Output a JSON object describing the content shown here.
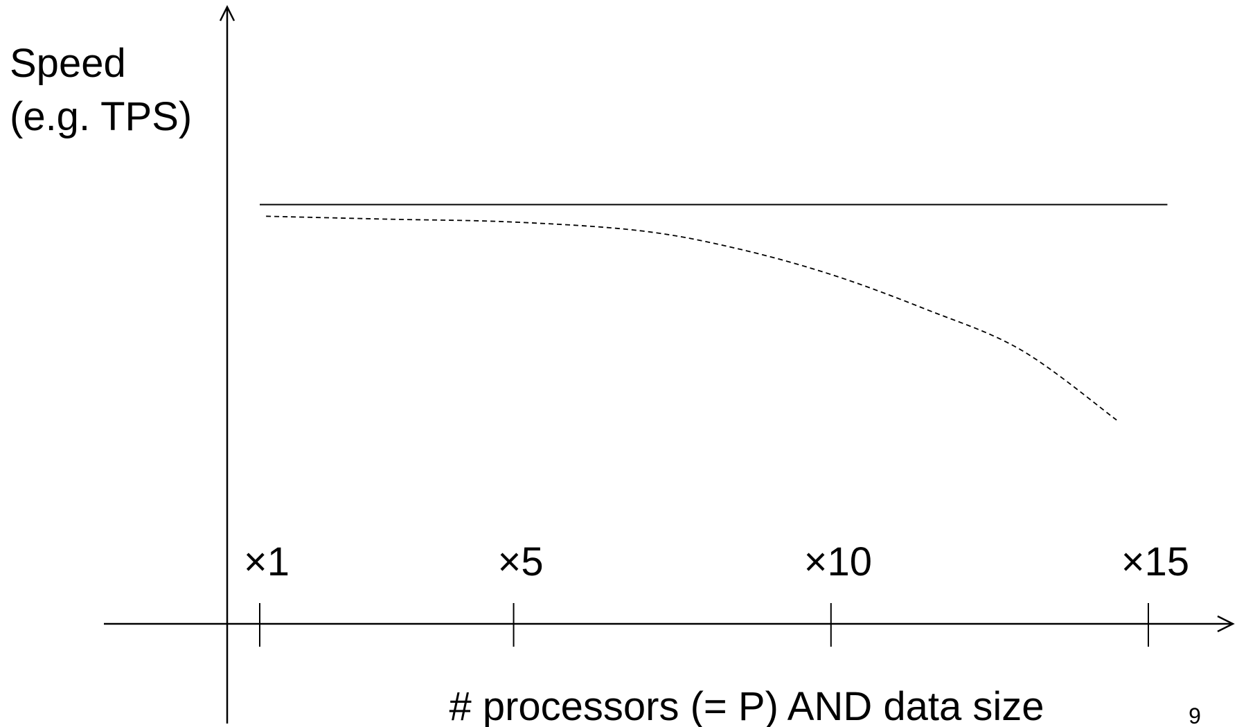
{
  "slide": {
    "page_number": "9"
  },
  "chart_data": {
    "type": "line",
    "title": "",
    "ylabel_lines": [
      "Speed",
      "(e.g. TPS)"
    ],
    "xlabel": "# processors (= P) AND data size",
    "ticks": [
      {
        "x": 1,
        "label": "×1"
      },
      {
        "x": 5,
        "label": "×5"
      },
      {
        "x": 10,
        "label": "×10"
      },
      {
        "x": 15,
        "label": "×15"
      }
    ],
    "xlim": [
      -2,
      16.5
    ],
    "ylim": [
      0,
      1
    ],
    "y_axis_ticks": false,
    "grid": false,
    "legend": "none",
    "series": [
      {
        "style": "solid",
        "color": "#000000",
        "points": [
          [
            1,
            0.72
          ],
          [
            15.3,
            0.72
          ]
        ]
      },
      {
        "style": "dashed",
        "color": "#000000",
        "points": [
          [
            1.1,
            0.7
          ],
          [
            3,
            0.695
          ],
          [
            5,
            0.69
          ],
          [
            7,
            0.675
          ],
          [
            8.5,
            0.645
          ],
          [
            10,
            0.6
          ],
          [
            11.5,
            0.54
          ],
          [
            13,
            0.47
          ],
          [
            14.5,
            0.35
          ]
        ]
      }
    ]
  }
}
